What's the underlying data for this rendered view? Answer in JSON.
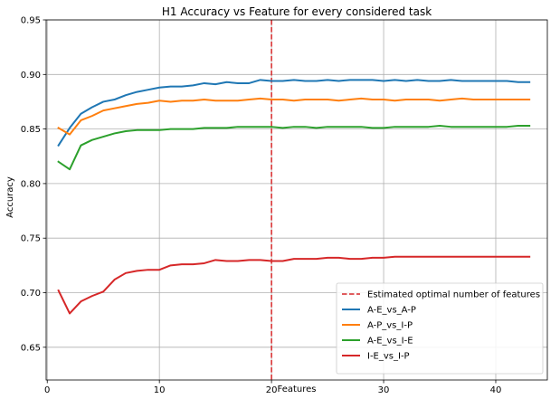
{
  "chart_data": {
    "type": "line",
    "title": "H1 Accuracy vs Feature for every considered task",
    "xlabel": "Features",
    "ylabel": "Accuracy",
    "xlim": [
      -0.1,
      44.6
    ],
    "ylim": [
      0.62,
      0.95
    ],
    "xticks": [
      0,
      10,
      20,
      30,
      40
    ],
    "yticks": [
      0.65,
      0.7,
      0.75,
      0.8,
      0.85,
      0.9,
      0.95
    ],
    "grid": true,
    "legend_position": "lower-right",
    "vline": {
      "x": 20,
      "label": "Estimated optimal number of features",
      "color": "#d62728"
    },
    "x": [
      1,
      2,
      3,
      4,
      5,
      6,
      7,
      8,
      9,
      10,
      11,
      12,
      13,
      14,
      15,
      16,
      17,
      18,
      19,
      20,
      21,
      22,
      23,
      24,
      25,
      26,
      27,
      28,
      29,
      30,
      31,
      32,
      33,
      34,
      35,
      36,
      37,
      38,
      39,
      40,
      41,
      42,
      43
    ],
    "series": [
      {
        "name": "A-E_vs_A-P",
        "color": "#1f77b4",
        "values": [
          0.835,
          0.851,
          0.864,
          0.87,
          0.875,
          0.877,
          0.881,
          0.884,
          0.886,
          0.888,
          0.889,
          0.889,
          0.89,
          0.892,
          0.891,
          0.893,
          0.892,
          0.892,
          0.895,
          0.894,
          0.894,
          0.895,
          0.894,
          0.894,
          0.895,
          0.894,
          0.895,
          0.895,
          0.895,
          0.894,
          0.895,
          0.894,
          0.895,
          0.894,
          0.894,
          0.895,
          0.894,
          0.894,
          0.894,
          0.894,
          0.894,
          0.893,
          0.893
        ]
      },
      {
        "name": "A-P_vs_I-P",
        "color": "#ff7f0e",
        "values": [
          0.851,
          0.845,
          0.858,
          0.862,
          0.867,
          0.869,
          0.871,
          0.873,
          0.874,
          0.876,
          0.875,
          0.876,
          0.876,
          0.877,
          0.876,
          0.876,
          0.876,
          0.877,
          0.878,
          0.877,
          0.877,
          0.876,
          0.877,
          0.877,
          0.877,
          0.876,
          0.877,
          0.878,
          0.877,
          0.877,
          0.876,
          0.877,
          0.877,
          0.877,
          0.876,
          0.877,
          0.878,
          0.877,
          0.877,
          0.877,
          0.877,
          0.877,
          0.877
        ]
      },
      {
        "name": "A-E_vs_I-E",
        "color": "#2ca02c",
        "values": [
          0.82,
          0.813,
          0.835,
          0.84,
          0.843,
          0.846,
          0.848,
          0.849,
          0.849,
          0.849,
          0.85,
          0.85,
          0.85,
          0.851,
          0.851,
          0.851,
          0.852,
          0.852,
          0.852,
          0.852,
          0.851,
          0.852,
          0.852,
          0.851,
          0.852,
          0.852,
          0.852,
          0.852,
          0.851,
          0.851,
          0.852,
          0.852,
          0.852,
          0.852,
          0.853,
          0.852,
          0.852,
          0.852,
          0.852,
          0.852,
          0.852,
          0.853,
          0.853
        ]
      },
      {
        "name": "I-E_vs_I-P",
        "color": "#d62728",
        "values": [
          0.702,
          0.681,
          0.692,
          0.697,
          0.701,
          0.712,
          0.718,
          0.72,
          0.721,
          0.721,
          0.725,
          0.726,
          0.726,
          0.727,
          0.73,
          0.729,
          0.729,
          0.73,
          0.73,
          0.729,
          0.729,
          0.731,
          0.731,
          0.731,
          0.732,
          0.732,
          0.731,
          0.731,
          0.732,
          0.732,
          0.733,
          0.733,
          0.733,
          0.733,
          0.733,
          0.733,
          0.733,
          0.733,
          0.733,
          0.733,
          0.733,
          0.733,
          0.733
        ]
      }
    ]
  }
}
